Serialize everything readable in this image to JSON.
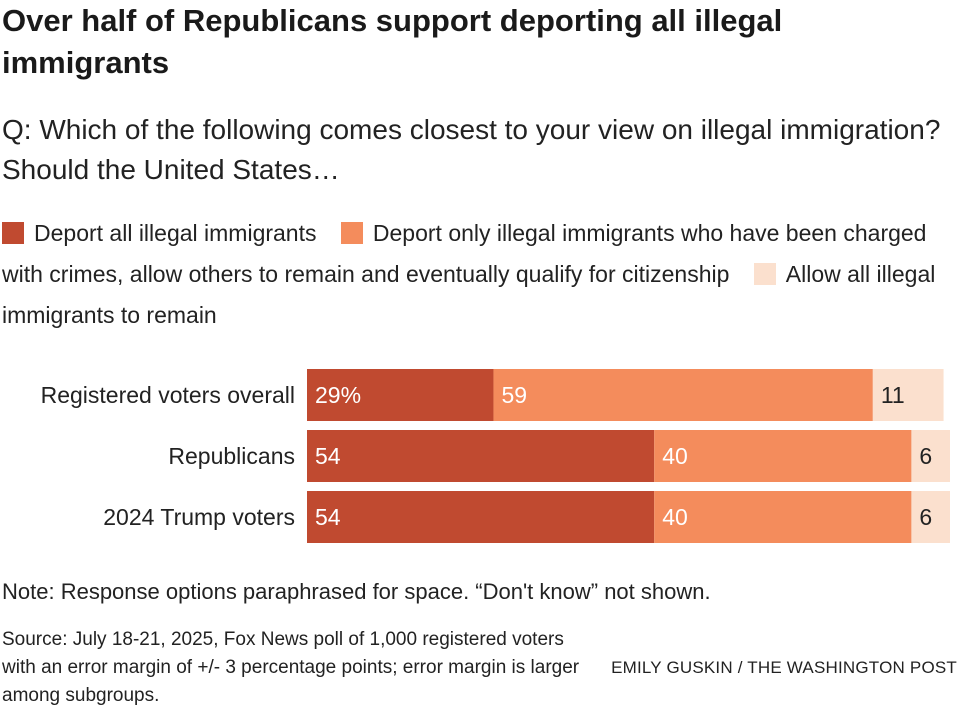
{
  "headline": "Over half of Republicans support deporting all illegal immigrants",
  "question": "Q: Which of the following comes closest to your view on illegal immigration? Should the United States…",
  "legend": [
    {
      "label": "Deport all illegal immigrants",
      "color": "#c04a30"
    },
    {
      "label": "Deport only illegal immigrants who have been charged with crimes, allow others to remain and eventually qualify for citizenship",
      "color": "#f48c5c"
    },
    {
      "label": "Allow all illegal immigrants to remain",
      "color": "#fbe0ce"
    }
  ],
  "chart_data": {
    "type": "bar",
    "orientation": "horizontal",
    "stacked": true,
    "categories": [
      "Registered voters overall",
      "Republicans",
      "2024 Trump voters"
    ],
    "series": [
      {
        "name": "Deport all illegal immigrants",
        "values": [
          29,
          54,
          54
        ],
        "labels": [
          "29%",
          "54",
          "54"
        ],
        "color": "#c04a30"
      },
      {
        "name": "Deport only illegal immigrants who have been charged with crimes, allow others to remain and eventually qualify for citizenship",
        "values": [
          59,
          40,
          40
        ],
        "labels": [
          "59",
          "40",
          "40"
        ],
        "color": "#f48c5c"
      },
      {
        "name": "Allow all illegal immigrants to remain",
        "values": [
          11,
          6,
          6
        ],
        "labels": [
          "11",
          "6",
          "6"
        ],
        "color": "#fbe0ce"
      }
    ],
    "xlim": [
      0,
      100
    ],
    "title": "Over half of Republicans support deporting all illegal immigrants"
  },
  "note": "Note: Response options paraphrased for space. “Don't know” not shown.",
  "source": "Source: July 18-21, 2025, Fox News poll of 1,000 registered voters with an error margin of +/- 3 percentage points; error margin is larger among subgroups.",
  "credit": "EMILY GUSKIN / THE WASHINGTON POST"
}
